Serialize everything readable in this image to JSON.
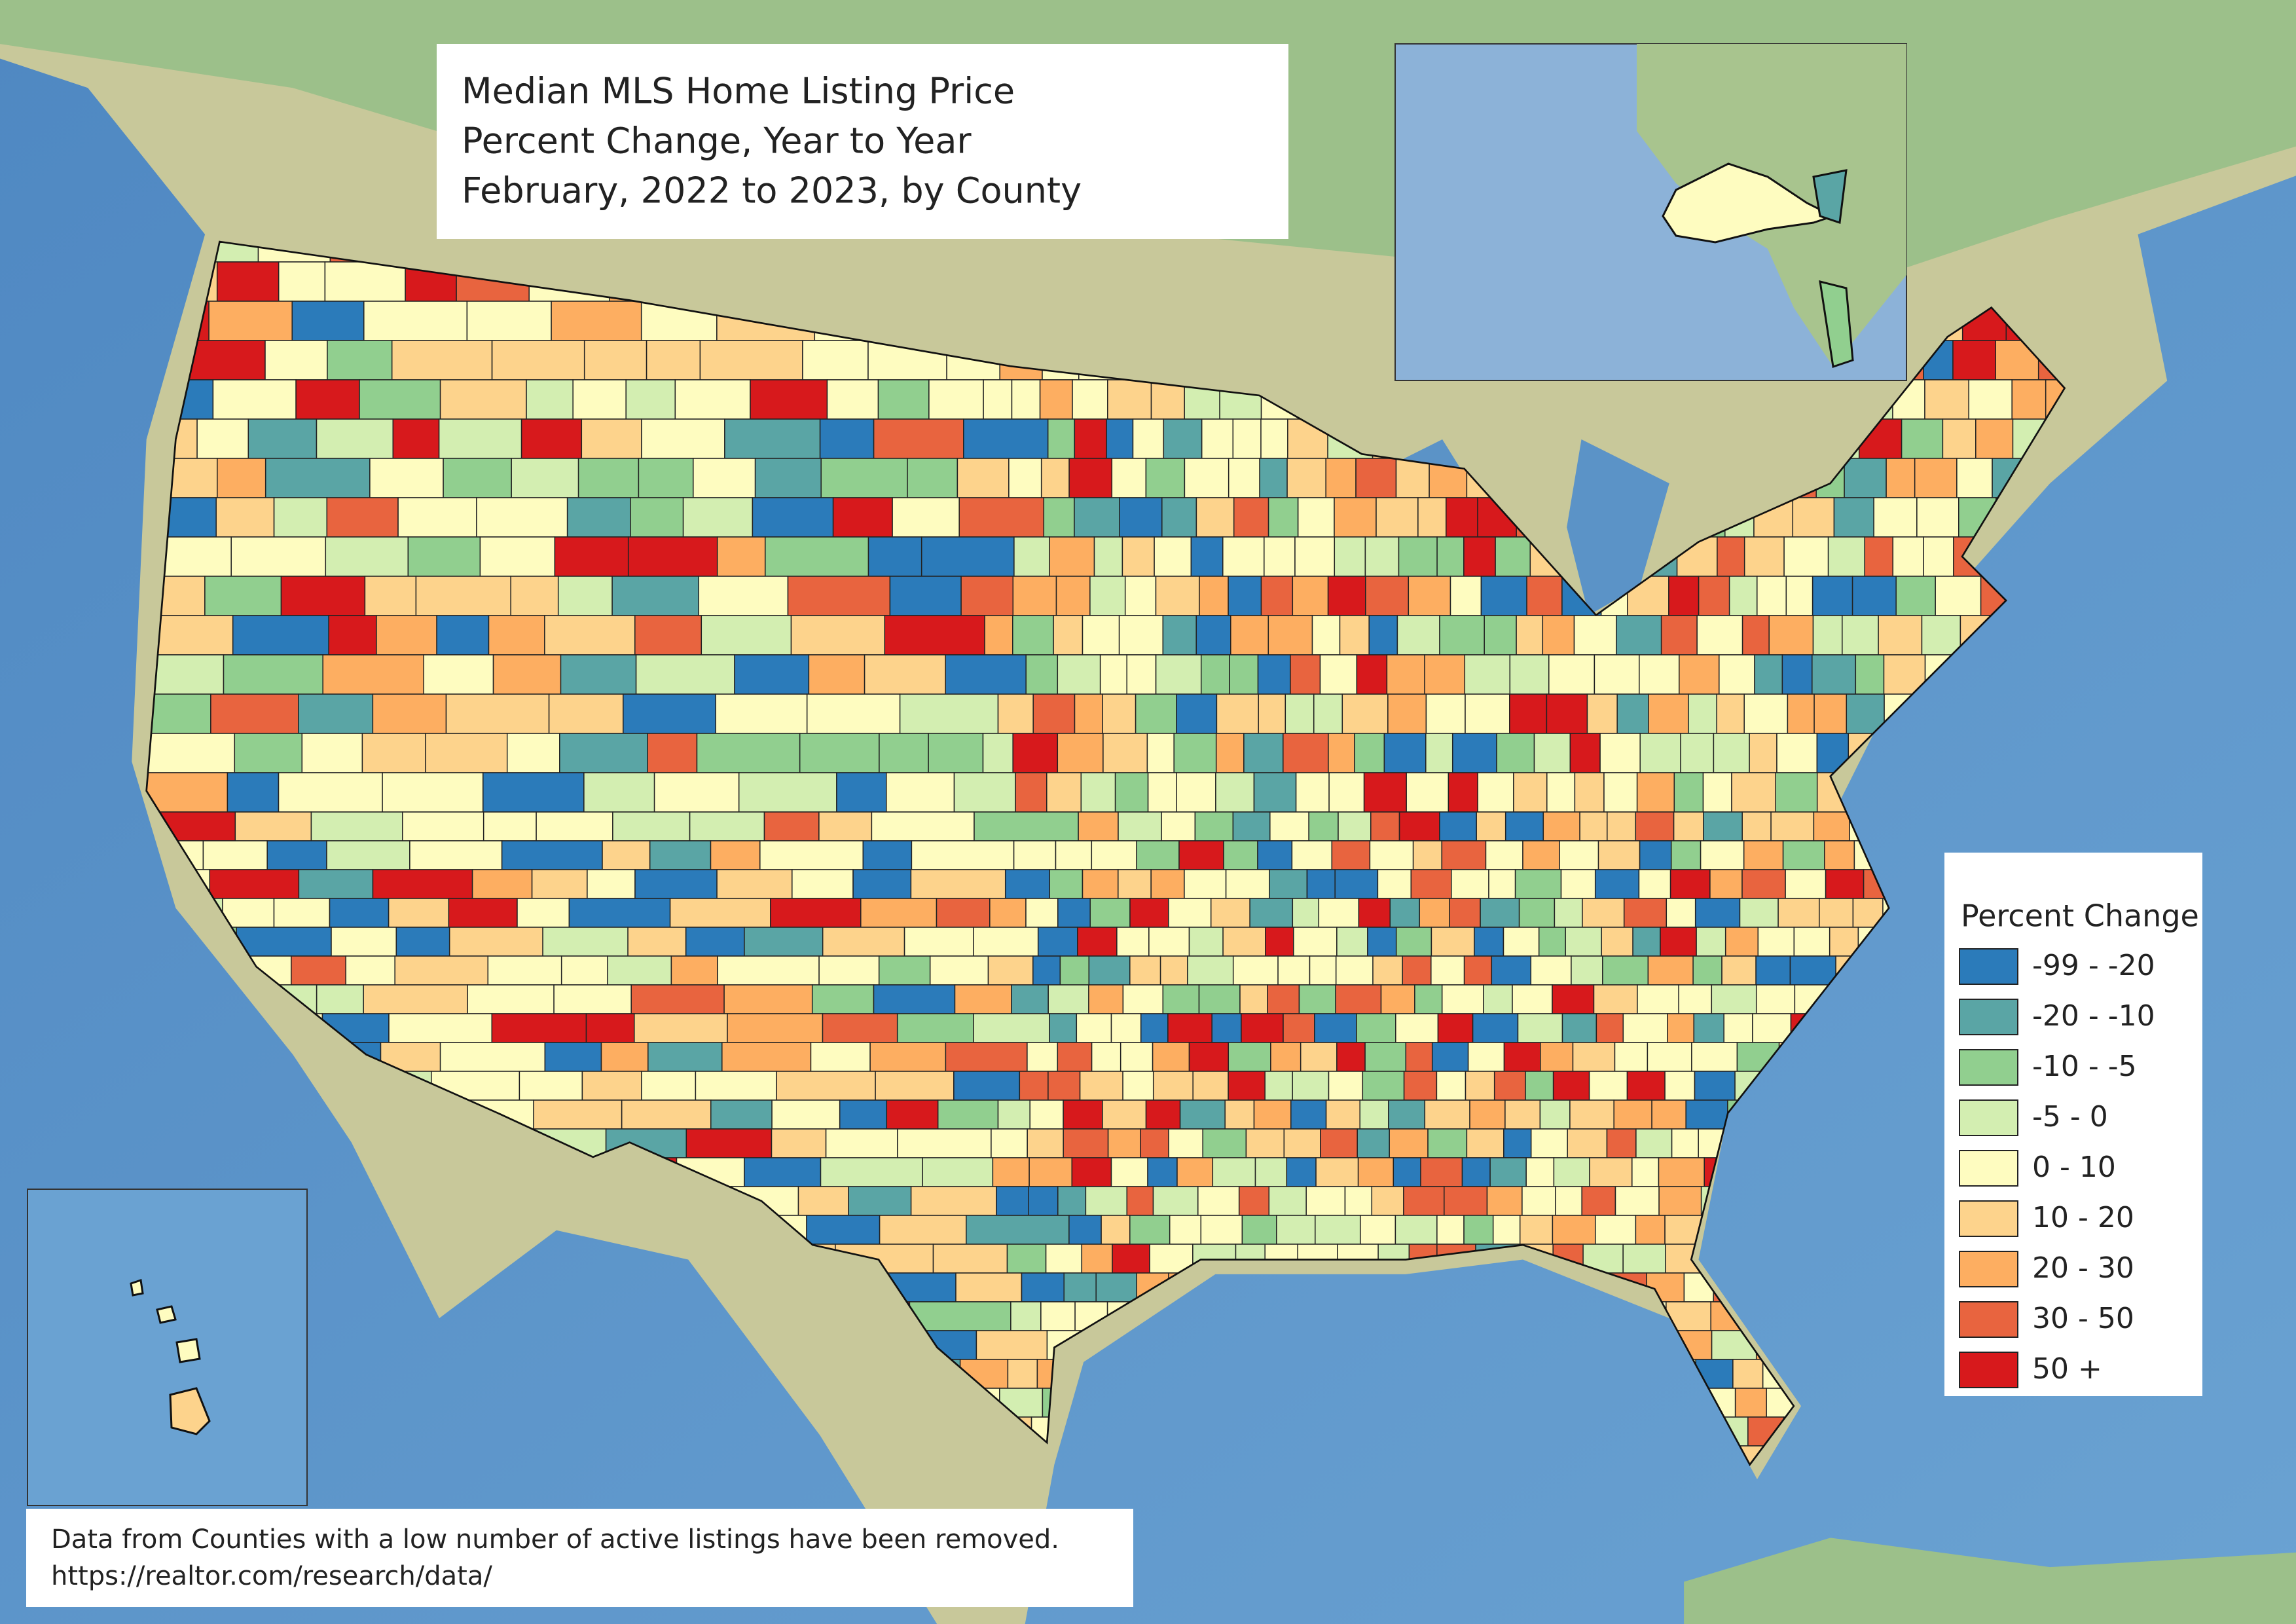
{
  "title": {
    "lines": [
      "Median MLS Home Listing Price",
      "Percent Change, Year to Year",
      "February, 2022 to 2023, by County"
    ]
  },
  "legend": {
    "title": "Percent Change",
    "items": [
      {
        "label": "-99 - -20",
        "color": "#2b7bba"
      },
      {
        "label": "-20 - -10",
        "color": "#5aa5a5"
      },
      {
        "label": "-10 - -5",
        "color": "#91cf8f"
      },
      {
        "label": "-5 - 0",
        "color": "#d3eeb1"
      },
      {
        "label": "0 - 10",
        "color": "#fefcc0"
      },
      {
        "label": "10 - 20",
        "color": "#fdd38c"
      },
      {
        "label": "20 - 30",
        "color": "#fdae61"
      },
      {
        "label": "30 - 50",
        "color": "#e8643f"
      },
      {
        "label": "50 +",
        "color": "#d7191c"
      }
    ]
  },
  "footnote": {
    "lines": [
      "Data from Counties with a low number of active listings have been removed.",
      "https://realtor.com/research/data/"
    ]
  }
}
